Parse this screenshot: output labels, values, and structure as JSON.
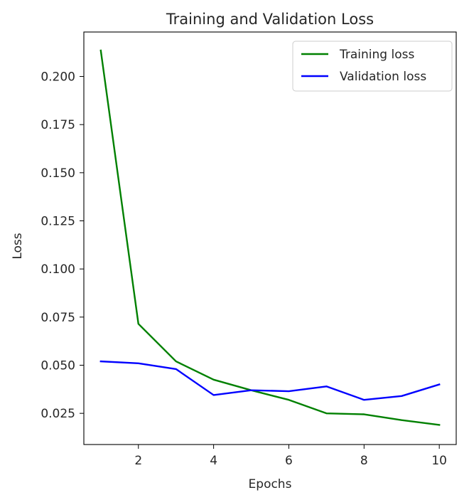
{
  "chart_data": {
    "type": "line",
    "title": "Training and Validation Loss",
    "xlabel": "Epochs",
    "ylabel": "Loss",
    "x": [
      1,
      2,
      3,
      4,
      5,
      6,
      7,
      8,
      9,
      10
    ],
    "xlim": [
      0.55,
      10.45
    ],
    "ylim": [
      0.0088,
      0.2231
    ],
    "xticks": [
      2,
      4,
      6,
      8,
      10
    ],
    "yticks": [
      0.025,
      0.05,
      0.075,
      0.1,
      0.125,
      0.15,
      0.175,
      0.2
    ],
    "xtick_labels": [
      "2",
      "4",
      "6",
      "8",
      "10"
    ],
    "ytick_labels": [
      "0.025",
      "0.050",
      "0.075",
      "0.100",
      "0.125",
      "0.150",
      "0.175",
      "0.200"
    ],
    "grid": false,
    "legend_position": "top-right",
    "series": [
      {
        "name": "Training loss",
        "color": "#008000",
        "values": [
          0.2135,
          0.0715,
          0.052,
          0.0425,
          0.037,
          0.032,
          0.025,
          0.0245,
          0.0215,
          0.019
        ]
      },
      {
        "name": "Validation loss",
        "color": "#0000ff",
        "values": [
          0.052,
          0.051,
          0.048,
          0.0345,
          0.037,
          0.0365,
          0.039,
          0.032,
          0.034,
          0.04
        ]
      }
    ]
  }
}
